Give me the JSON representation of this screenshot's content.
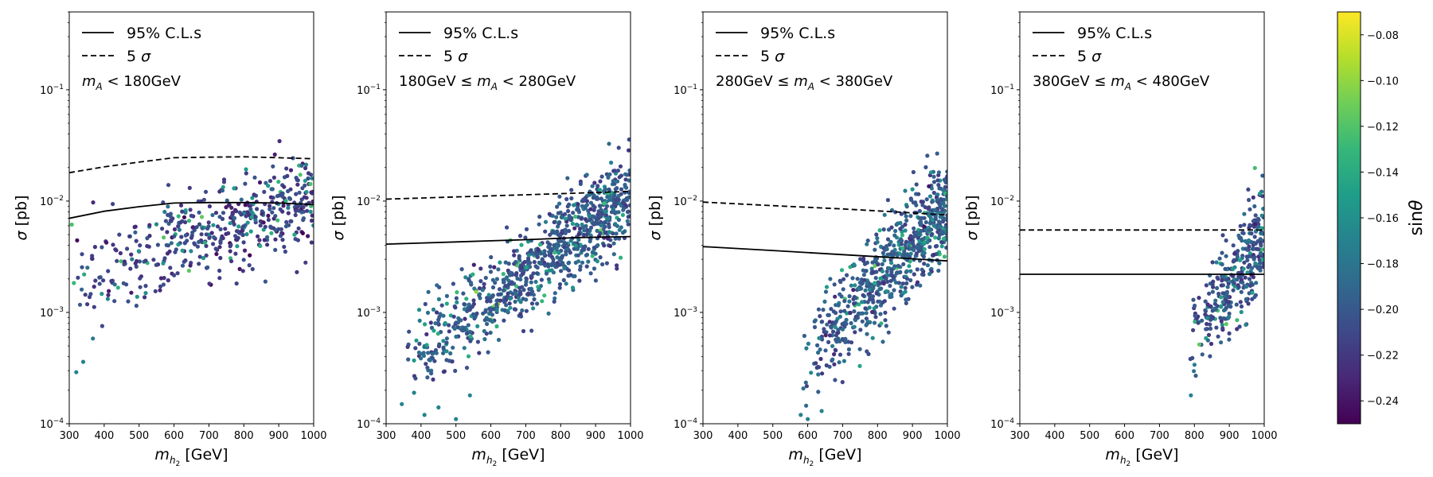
{
  "chart_data": {
    "type": "scatter",
    "figure": "Cross section vs m_h2 in four m_A bins, colored by sin theta",
    "panels": [
      {
        "annotation": "m_A < 180GeV",
        "annotation_parts": {
          "pre": "",
          "post": " < 180GeV"
        },
        "xlabel": "m_h2 [GeV]",
        "ylabel": "σ [pb]",
        "xlim": [
          300,
          1000
        ],
        "ylim": [
          0.0001,
          0.5
        ],
        "xticks": [
          "300",
          "400",
          "500",
          "600",
          "700",
          "800",
          "900",
          "1000"
        ],
        "yticks": [
          "10^-4",
          "10^-3",
          "10^-2",
          "10^-1"
        ],
        "legend": [
          {
            "label": "95% C.L.s",
            "style": "solid"
          },
          {
            "label": "5 σ",
            "style": "dashed"
          }
        ],
        "cls95_curve": [
          [
            300,
            0.007
          ],
          [
            400,
            0.0081
          ],
          [
            500,
            0.0089
          ],
          [
            600,
            0.0096
          ],
          [
            700,
            0.0097
          ],
          [
            800,
            0.0097
          ],
          [
            900,
            0.0096
          ],
          [
            1000,
            0.0093
          ]
        ],
        "sigma5_curve": [
          [
            300,
            0.018
          ],
          [
            400,
            0.0203
          ],
          [
            500,
            0.0224
          ],
          [
            600,
            0.0245
          ],
          [
            700,
            0.0248
          ],
          [
            800,
            0.025
          ],
          [
            900,
            0.0245
          ],
          [
            1000,
            0.024
          ]
        ],
        "scatter": {
          "n": 500,
          "x_range": [
            300,
            1000
          ],
          "log_sigma_at_x_min": -2.7,
          "log_sigma_at_x_max": -1.95,
          "log_spread": 0.22,
          "sin_theta_typical": -0.215,
          "outliers": [
            [
              320,
              0.00029
            ],
            [
              340,
              0.00036
            ]
          ]
        }
      },
      {
        "annotation": "180GeV ≤ m_A < 280GeV",
        "annotation_parts": {
          "pre": "180GeV ≤ ",
          "post": " < 280GeV"
        },
        "xlabel": "m_h2 [GeV]",
        "ylabel": "σ [pb]",
        "xlim": [
          300,
          1000
        ],
        "ylim": [
          0.0001,
          0.5
        ],
        "xticks": [
          "300",
          "400",
          "500",
          "600",
          "700",
          "800",
          "900",
          "1000"
        ],
        "yticks": [
          "10^-4",
          "10^-3",
          "10^-2",
          "10^-1"
        ],
        "legend": [
          {
            "label": "95% C.L.s",
            "style": "solid"
          },
          {
            "label": "5 σ",
            "style": "dashed"
          }
        ],
        "cls95_curve": [
          [
            300,
            0.0041
          ],
          [
            500,
            0.0043
          ],
          [
            700,
            0.0045
          ],
          [
            850,
            0.0047
          ],
          [
            1000,
            0.0048
          ]
        ],
        "sigma5_curve": [
          [
            300,
            0.0104
          ],
          [
            500,
            0.0109
          ],
          [
            700,
            0.0114
          ],
          [
            850,
            0.0118
          ],
          [
            1000,
            0.0122
          ]
        ],
        "scatter": {
          "n": 900,
          "x_range": [
            330,
            1000
          ],
          "log_sigma_at_x_min": -3.5,
          "log_sigma_at_x_max": -1.95,
          "log_spread": 0.2,
          "sin_theta_typical": -0.2,
          "outliers": [
            [
              345,
              0.00015
            ],
            [
              380,
              0.00019
            ],
            [
              410,
              0.00012
            ],
            [
              450,
              0.00014
            ],
            [
              500,
              0.00011
            ],
            [
              540,
              0.00018
            ]
          ]
        }
      },
      {
        "annotation": "280GeV ≤ m_A < 380GeV",
        "annotation_parts": {
          "pre": "280GeV ≤ ",
          "post": " < 380GeV"
        },
        "xlabel": "m_h2 [GeV]",
        "ylabel": "σ [pb]",
        "xlim": [
          300,
          1000
        ],
        "ylim": [
          0.0001,
          0.5
        ],
        "xticks": [
          "300",
          "400",
          "500",
          "600",
          "700",
          "800",
          "900",
          "1000"
        ],
        "yticks": [
          "10^-4",
          "10^-3",
          "10^-2",
          "10^-1"
        ],
        "legend": [
          {
            "label": "95% C.L.s",
            "style": "solid"
          },
          {
            "label": "5 σ",
            "style": "dashed"
          }
        ],
        "cls95_curve": [
          [
            300,
            0.0039
          ],
          [
            500,
            0.0036
          ],
          [
            700,
            0.0033
          ],
          [
            850,
            0.0031
          ],
          [
            1000,
            0.0029
          ]
        ],
        "sigma5_curve": [
          [
            300,
            0.0098
          ],
          [
            500,
            0.0091
          ],
          [
            700,
            0.0085
          ],
          [
            850,
            0.008
          ],
          [
            1000,
            0.0075
          ]
        ],
        "scatter": {
          "n": 700,
          "x_range": [
            575,
            1000
          ],
          "log_sigma_at_x_min": -3.5,
          "log_sigma_at_x_max": -2.05,
          "log_spread": 0.22,
          "sin_theta_typical": -0.2,
          "outliers": [
            [
              580,
              0.00012
            ],
            [
              600,
              0.00011
            ],
            [
              640,
              0.00013
            ]
          ]
        }
      },
      {
        "annotation": "380GeV ≤ m_A < 480GeV",
        "annotation_parts": {
          "pre": "380GeV ≤ ",
          "post": " < 480GeV"
        },
        "xlabel": "m_h2 [GeV]",
        "ylabel": "σ [pb]",
        "xlim": [
          300,
          1000
        ],
        "ylim": [
          0.0001,
          0.5
        ],
        "xticks": [
          "300",
          "400",
          "500",
          "600",
          "700",
          "800",
          "900",
          "1000"
        ],
        "yticks": [
          "10^-4",
          "10^-3",
          "10^-2",
          "10^-1"
        ],
        "legend": [
          {
            "label": "95% C.L.s",
            "style": "solid"
          },
          {
            "label": "5 σ",
            "style": "dashed"
          }
        ],
        "cls95_curve": [
          [
            300,
            0.0022
          ],
          [
            1000,
            0.0022
          ]
        ],
        "sigma5_curve": [
          [
            300,
            0.0055
          ],
          [
            1000,
            0.0055
          ]
        ],
        "scatter": {
          "n": 330,
          "x_range": [
            780,
            1000
          ],
          "log_sigma_at_x_min": -3.3,
          "log_sigma_at_x_max": -2.3,
          "log_spread": 0.22,
          "sin_theta_typical": -0.205,
          "outliers": [
            [
              790,
              0.00018
            ]
          ]
        }
      }
    ],
    "colorbar": {
      "label": "sinθ",
      "colormap": "viridis",
      "range": [
        -0.25,
        -0.07
      ],
      "ticks": [
        -0.08,
        -0.1,
        -0.12,
        -0.14,
        -0.16,
        -0.18,
        -0.2,
        -0.22,
        -0.24
      ],
      "tick_labels": [
        "−0.08",
        "−0.10",
        "−0.12",
        "−0.14",
        "−0.16",
        "−0.18",
        "−0.20",
        "−0.22",
        "−0.24"
      ]
    },
    "viridis_stops": [
      "#440154",
      "#482878",
      "#3e4989",
      "#31688e",
      "#26828e",
      "#1f9e89",
      "#35b779",
      "#6ece58",
      "#b5de2b",
      "#fde725"
    ]
  }
}
